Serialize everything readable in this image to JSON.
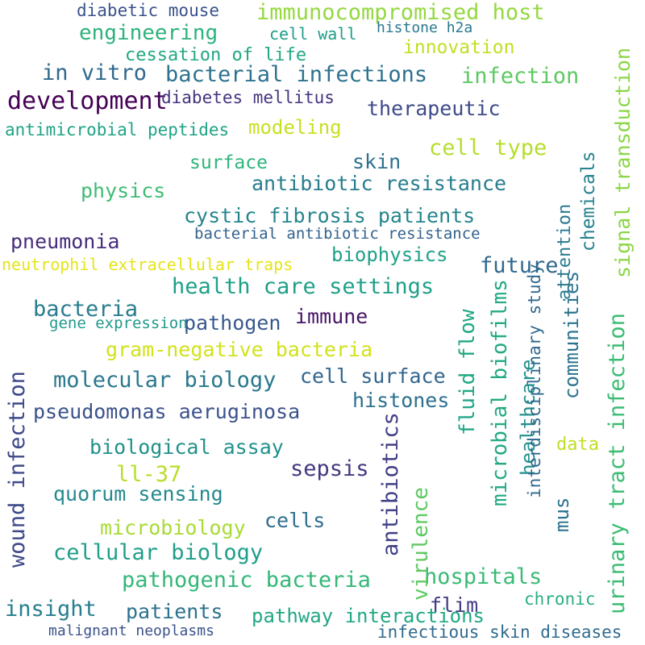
{
  "words": [
    {
      "text": "immunocompromised host",
      "color": "#95d840"
    },
    {
      "text": "diabetic mouse",
      "color": "#3b528b"
    },
    {
      "text": "engineering",
      "color": "#2db27d"
    },
    {
      "text": "cell wall",
      "color": "#1f9e89"
    },
    {
      "text": "histone h2a",
      "color": "#2a788e"
    },
    {
      "text": "innovation",
      "color": "#c2df23"
    },
    {
      "text": "cessation of life",
      "color": "#22a884"
    },
    {
      "text": "in vitro",
      "color": "#31688e"
    },
    {
      "text": "bacterial infections",
      "color": "#2c728e"
    },
    {
      "text": "infection",
      "color": "#5ec962"
    },
    {
      "text": "development",
      "color": "#440154"
    },
    {
      "text": "diabetes mellitus",
      "color": "#46337f"
    },
    {
      "text": "therapeutic",
      "color": "#3e4a89"
    },
    {
      "text": "antimicrobial peptides",
      "color": "#20a386"
    },
    {
      "text": "modeling",
      "color": "#c8e020"
    },
    {
      "text": "cell type",
      "color": "#b5de2b"
    },
    {
      "text": "surface",
      "color": "#2fb47c"
    },
    {
      "text": "skin",
      "color": "#2d718e"
    },
    {
      "text": "physics",
      "color": "#3fbc73"
    },
    {
      "text": "antibiotic resistance",
      "color": "#287d8e"
    },
    {
      "text": "cystic fibrosis patients",
      "color": "#25858e"
    },
    {
      "text": "pneumonia",
      "color": "#472d7b"
    },
    {
      "text": "bacterial antibiotic resistance",
      "color": "#33628d"
    },
    {
      "text": "biophysics",
      "color": "#1fa188"
    },
    {
      "text": "neutrophil extracellular traps",
      "color": "#e5e419"
    },
    {
      "text": "future",
      "color": "#31688e"
    },
    {
      "text": "health care settings",
      "color": "#1fa088"
    },
    {
      "text": "bacteria",
      "color": "#287c8e"
    },
    {
      "text": "pathogen",
      "color": "#38588c"
    },
    {
      "text": "immune",
      "color": "#481567"
    },
    {
      "text": "gene expression",
      "color": "#1f9a8a"
    },
    {
      "text": "gram-negative bacteria",
      "color": "#d2e21b"
    },
    {
      "text": "molecular biology",
      "color": "#2a788e"
    },
    {
      "text": "cell surface",
      "color": "#32658e"
    },
    {
      "text": "histones",
      "color": "#2d708e"
    },
    {
      "text": "pseudomonas aeruginosa",
      "color": "#3b528b"
    },
    {
      "text": "biological assay",
      "color": "#21918c"
    },
    {
      "text": "ll-37",
      "color": "#b8de29"
    },
    {
      "text": "sepsis",
      "color": "#453781"
    },
    {
      "text": "quorum sensing",
      "color": "#23898e"
    },
    {
      "text": "microbiology",
      "color": "#a8db34"
    },
    {
      "text": "cells",
      "color": "#2e6e8e"
    },
    {
      "text": "cellular biology",
      "color": "#1f9e89"
    },
    {
      "text": "pathogenic bacteria",
      "color": "#35b779"
    },
    {
      "text": "hospitals",
      "color": "#3aba76"
    },
    {
      "text": "insight",
      "color": "#277f8e"
    },
    {
      "text": "patients",
      "color": "#2c728e"
    },
    {
      "text": "pathway interactions",
      "color": "#22a785"
    },
    {
      "text": "infectious skin diseases",
      "color": "#2f6c8e"
    },
    {
      "text": "flim",
      "color": "#433e85"
    },
    {
      "text": "chronic",
      "color": "#29af7f"
    },
    {
      "text": "healthcare",
      "color": "#21908d"
    },
    {
      "text": "data",
      "color": "#c0df25"
    },
    {
      "text": "mus",
      "color": "#2c738e"
    },
    {
      "text": "communities",
      "color": "#2b748e"
    },
    {
      "text": "wound infection",
      "color": "#3e4989"
    },
    {
      "text": "antibiotics",
      "color": "#424086"
    },
    {
      "text": "microbial biofilms",
      "color": "#23a983"
    },
    {
      "text": "fluid flow",
      "color": "#22a785"
    },
    {
      "text": "virulence",
      "color": "#5ec962"
    },
    {
      "text": "urinary tract infection",
      "color": "#3dbc74"
    },
    {
      "text": "signal transduction",
      "color": "#8bd646"
    },
    {
      "text": "interdisciplinary study",
      "color": "#31688e"
    },
    {
      "text": "malignant neoplasms",
      "color": "#3b528b"
    },
    {
      "text": "chemicals",
      "color": "#26828e"
    },
    {
      "text": "attention",
      "color": "#297b8e"
    }
  ]
}
